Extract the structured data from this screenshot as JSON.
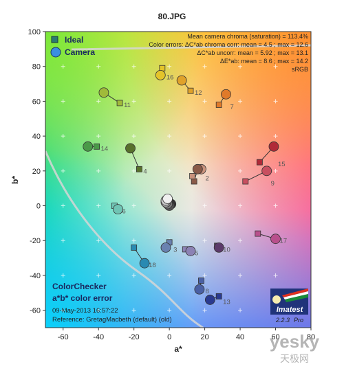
{
  "chart_data": {
    "type": "scatter",
    "title": "80.JPG",
    "xlabel": "a*",
    "ylabel": "b*",
    "xlim": [
      -70,
      80
    ],
    "ylim": [
      -70,
      100
    ],
    "xticks": [
      -60,
      -40,
      -20,
      0,
      20,
      40,
      60,
      80
    ],
    "yticks": [
      -60,
      -40,
      -20,
      0,
      20,
      40,
      60,
      80,
      100
    ],
    "grid": "dotted crosses",
    "legend": {
      "placement": "top-left",
      "entries": [
        {
          "label": "Ideal",
          "marker": "square",
          "color": "#2a7a72"
        },
        {
          "label": "Camera",
          "marker": "circle",
          "color": "#3a8ee0"
        }
      ]
    },
    "stats": [
      "Mean camera chroma (saturation) = 113.4%",
      "Color errors:  ΔC*ab chroma corr:  mean = 4.5 ;  max = 12.6",
      "ΔC*ab uncorr:  mean = 5.92 ;  max = 13.1",
      "ΔE*ab:  mean = 8.6 ;  max = 14.2",
      "sRGB"
    ],
    "footer_title_1": "ColorChecker",
    "footer_title_2": "a*b* color error",
    "footer_date": "09-May-2013 16:57:22",
    "footer_reference": "Reference: GretagMacbeth (default) (old)",
    "logo": {
      "text": "Imatest",
      "version": "2.2.3",
      "edition": "Pro"
    },
    "watermark": {
      "latin": "yesky",
      "chinese": "天极网"
    },
    "patches": [
      {
        "id": 1,
        "ideal": [
          14,
          14
        ],
        "camera": [
          16,
          21
        ],
        "color": "#8a5a48"
      },
      {
        "id": 2,
        "ideal": [
          13,
          17
        ],
        "camera": [
          18,
          21
        ],
        "color": "#c8927c"
      },
      {
        "id": 3,
        "ideal": [
          0,
          -21
        ],
        "camera": [
          -2,
          -24
        ],
        "color": "#6a82b0"
      },
      {
        "id": 4,
        "ideal": [
          -17,
          21
        ],
        "camera": [
          -22,
          33
        ],
        "color": "#58702c"
      },
      {
        "id": 5,
        "ideal": [
          9,
          -25
        ],
        "camera": [
          12,
          -26
        ],
        "color": "#8c82b4"
      },
      {
        "id": 6,
        "ideal": [
          -31,
          0
        ],
        "camera": [
          -29,
          -2
        ],
        "color": "#70c4b4"
      },
      {
        "id": 7,
        "ideal": [
          28,
          58
        ],
        "camera": [
          32,
          64
        ],
        "color": "#e07a2a"
      },
      {
        "id": 8,
        "ideal": [
          18,
          -43
        ],
        "camera": [
          17,
          -48
        ],
        "color": "#4a60a4"
      },
      {
        "id": 9,
        "ideal": [
          43,
          14
        ],
        "camera": [
          55,
          20
        ],
        "color": "#c85060"
      },
      {
        "id": 10,
        "ideal": [
          27,
          -23
        ],
        "camera": [
          28,
          -24
        ],
        "color": "#5c3a6a"
      },
      {
        "id": 11,
        "ideal": [
          -28,
          59
        ],
        "camera": [
          -37,
          65
        ],
        "color": "#a0ba3a"
      },
      {
        "id": 12,
        "ideal": [
          12,
          66
        ],
        "camera": [
          7,
          72
        ],
        "color": "#e0a22a"
      },
      {
        "id": 13,
        "ideal": [
          28,
          -52
        ],
        "camera": [
          23,
          -54
        ],
        "color": "#2a3a90"
      },
      {
        "id": 14,
        "ideal": [
          -41,
          34
        ],
        "camera": [
          -46,
          34
        ],
        "color": "#4a9a48"
      },
      {
        "id": 15,
        "ideal": [
          51,
          25
        ],
        "camera": [
          59,
          34
        ],
        "color": "#b02a38"
      },
      {
        "id": 16,
        "ideal": [
          -4,
          79
        ],
        "camera": [
          -5,
          75
        ],
        "color": "#e4c42a"
      },
      {
        "id": 17,
        "ideal": [
          50,
          -16
        ],
        "camera": [
          60,
          -19
        ],
        "color": "#b8508c"
      },
      {
        "id": 18,
        "ideal": [
          -20,
          -24
        ],
        "camera": [
          -14,
          -33
        ],
        "color": "#2a8ab2"
      },
      {
        "id": 19,
        "ideal": [
          0,
          1
        ],
        "camera": [
          -1,
          4
        ],
        "color": "#f0f0f0"
      },
      {
        "id": 20,
        "ideal": [
          0,
          0
        ],
        "camera": [
          -2,
          3
        ],
        "color": "#c8c8c8"
      },
      {
        "id": 21,
        "ideal": [
          0,
          0
        ],
        "camera": [
          -2,
          2
        ],
        "color": "#a0a0a0"
      },
      {
        "id": 22,
        "ideal": [
          0,
          0
        ],
        "camera": [
          -1,
          1
        ],
        "color": "#7a7a7a"
      },
      {
        "id": 23,
        "ideal": [
          0,
          0
        ],
        "camera": [
          0,
          0
        ],
        "color": "#555555"
      },
      {
        "id": 24,
        "ideal": [
          0,
          0
        ],
        "camera": [
          1,
          1
        ],
        "color": "#343434"
      }
    ],
    "labeled_patch_ids": [
      2,
      3,
      4,
      5,
      6,
      7,
      8,
      9,
      10,
      11,
      12,
      13,
      14,
      15,
      16,
      17,
      18
    ]
  }
}
